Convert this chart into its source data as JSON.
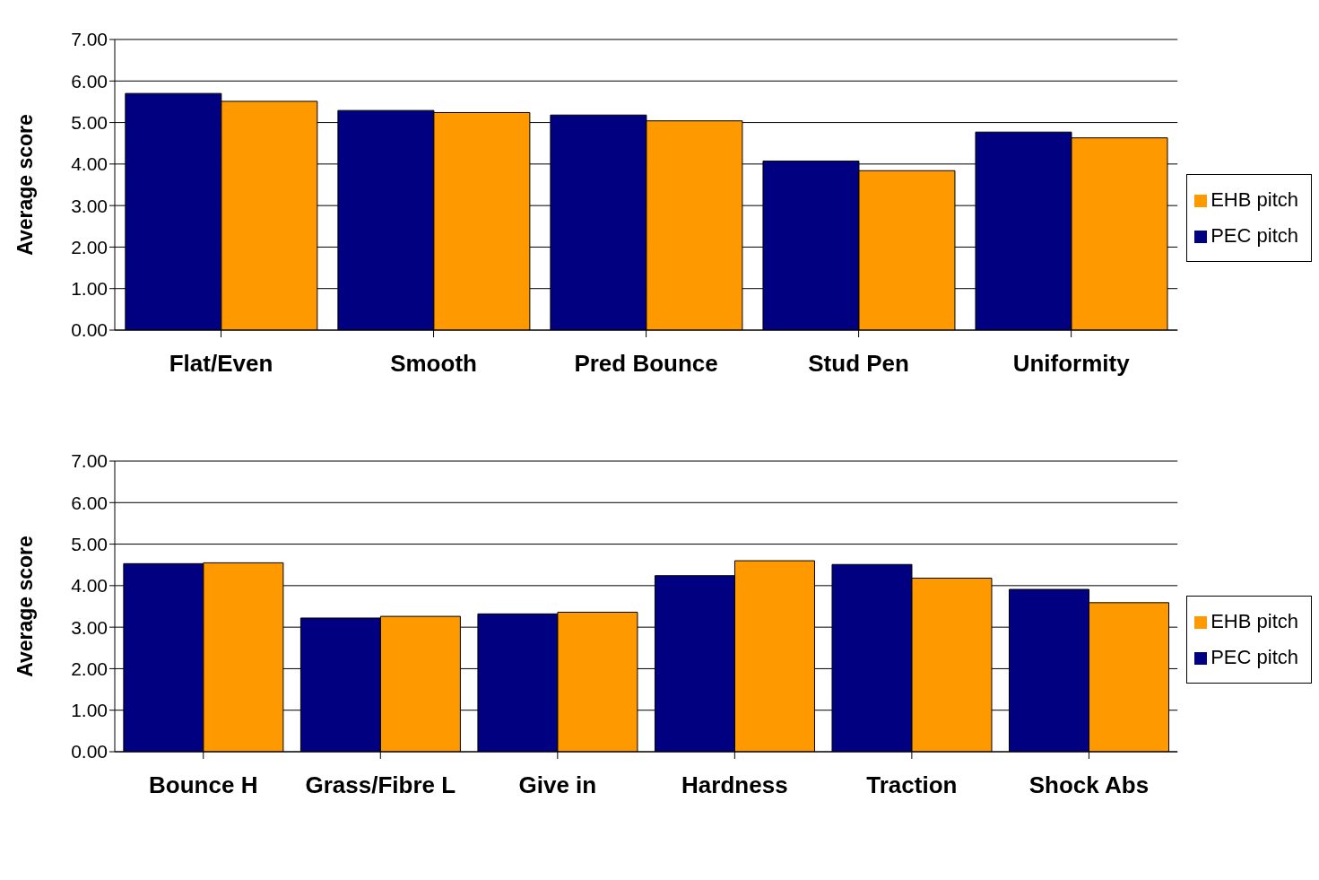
{
  "chart_data": [
    {
      "type": "bar",
      "ylabel": "Average score",
      "categories": [
        "Flat/Even",
        "Smooth",
        "Pred Bounce",
        "Stud Pen",
        "Uniformity"
      ],
      "series": [
        {
          "name": "PEC pitch",
          "color": "#000080",
          "values": [
            5.7,
            5.29,
            5.18,
            4.07,
            4.77
          ]
        },
        {
          "name": "EHB pitch",
          "color": "#ff9900",
          "values": [
            5.51,
            5.24,
            5.04,
            3.84,
            4.63
          ]
        }
      ],
      "ylim": [
        0,
        7
      ],
      "yticks": [
        {
          "value": 0,
          "label": "0.00"
        },
        {
          "value": 1,
          "label": "1.00"
        },
        {
          "value": 2,
          "label": "2.00"
        },
        {
          "value": 3,
          "label": "3.00"
        },
        {
          "value": 4,
          "label": "4.00"
        },
        {
          "value": 5,
          "label": "5.00"
        },
        {
          "value": 6,
          "label": "6.00"
        },
        {
          "value": 7,
          "label": "7.00"
        }
      ],
      "grid": "y",
      "legend": "right"
    },
    {
      "type": "bar",
      "ylabel": "Average score",
      "categories": [
        "Bounce H",
        "Grass/Fibre L",
        "Give in",
        "Hardness",
        "Traction",
        "Shock Abs"
      ],
      "series": [
        {
          "name": "PEC pitch",
          "color": "#000080",
          "values": [
            4.53,
            3.22,
            3.32,
            4.24,
            4.51,
            3.91
          ]
        },
        {
          "name": "EHB pitch",
          "color": "#ff9900",
          "values": [
            4.55,
            3.26,
            3.36,
            4.6,
            4.18,
            3.59
          ]
        }
      ],
      "ylim": [
        0,
        7
      ],
      "yticks": [
        {
          "value": 0,
          "label": "0.00"
        },
        {
          "value": 1,
          "label": "1.00"
        },
        {
          "value": 2,
          "label": "2.00"
        },
        {
          "value": 3,
          "label": "3.00"
        },
        {
          "value": 4,
          "label": "4.00"
        },
        {
          "value": 5,
          "label": "5.00"
        },
        {
          "value": 6,
          "label": "6.00"
        },
        {
          "value": 7,
          "label": "7.00"
        }
      ],
      "grid": "y",
      "legend": "right"
    }
  ]
}
